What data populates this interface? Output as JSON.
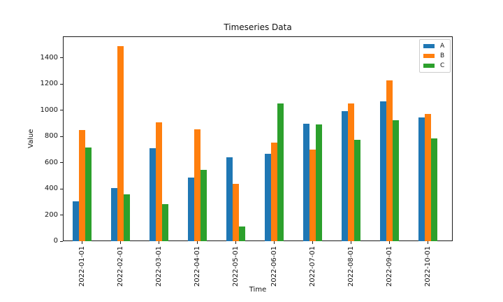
{
  "chart_data": {
    "type": "bar",
    "title": "Timeseries Data",
    "xlabel": "Time",
    "ylabel": "Value",
    "categories": [
      "2022-01-01",
      "2022-02-01",
      "2022-03-01",
      "2022-04-01",
      "2022-05-01",
      "2022-06-01",
      "2022-07-01",
      "2022-08-01",
      "2022-09-01",
      "2022-10-01"
    ],
    "series": [
      {
        "name": "A",
        "color": "#1f77b4",
        "values": [
          305,
          405,
          710,
          485,
          640,
          665,
          895,
          995,
          1070,
          945
        ]
      },
      {
        "name": "B",
        "color": "#ff7f0e",
        "values": [
          850,
          1490,
          910,
          855,
          440,
          750,
          700,
          1050,
          1230,
          970
        ]
      },
      {
        "name": "C",
        "color": "#2ca02c",
        "values": [
          715,
          355,
          285,
          545,
          110,
          1050,
          890,
          775,
          925,
          785
        ]
      }
    ],
    "yticks": [
      0,
      200,
      400,
      600,
      800,
      1000,
      1200,
      1400
    ],
    "ylim": [
      0,
      1564
    ],
    "grid": false,
    "legend": {
      "position": "upper right",
      "entries": [
        "A",
        "B",
        "C"
      ]
    },
    "colors": {
      "spine": "#1a1a1a",
      "background": "#ffffff",
      "legend_border": "#cccccc"
    }
  }
}
